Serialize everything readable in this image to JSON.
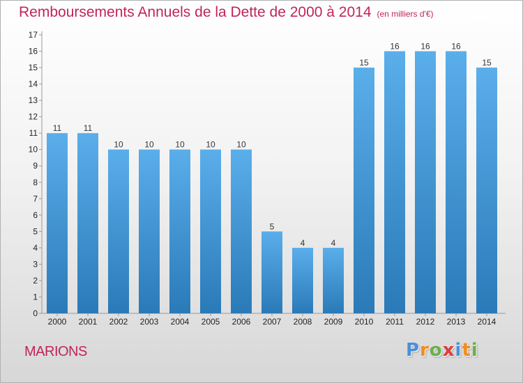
{
  "header": {
    "title": "Remboursements Annuels de la Dette de 2000 à 2014",
    "unit": "(en milliers d'€)"
  },
  "footer": {
    "town": "MARIONS",
    "logo": [
      "P",
      "r",
      "o",
      "x",
      "i",
      "t",
      "i"
    ],
    "logo_colors": [
      "#4a90d9",
      "#f28c1e",
      "#6ab04c",
      "#e23b3b",
      "#4a90d9",
      "#f28c1e",
      "#6ab04c"
    ]
  },
  "colors": {
    "title": "#c0245d",
    "bar_top": "#5aaeea",
    "bar_bottom": "#2a7ab8"
  },
  "chart_data": {
    "type": "bar",
    "title": "Remboursements Annuels de la Dette de 2000 à 2014",
    "ylabel": "en milliers d'€",
    "xlabel": "",
    "categories": [
      "2000",
      "2001",
      "2002",
      "2003",
      "2004",
      "2005",
      "2006",
      "2007",
      "2008",
      "2009",
      "2010",
      "2011",
      "2012",
      "2013",
      "2014"
    ],
    "values": [
      11,
      11,
      10,
      10,
      10,
      10,
      10,
      5,
      4,
      4,
      15,
      16,
      16,
      16,
      15
    ],
    "ylim": [
      0,
      17
    ],
    "yticks": [
      0,
      1,
      2,
      3,
      4,
      5,
      6,
      7,
      8,
      9,
      10,
      11,
      12,
      13,
      14,
      15,
      16,
      17
    ],
    "grid": false
  }
}
